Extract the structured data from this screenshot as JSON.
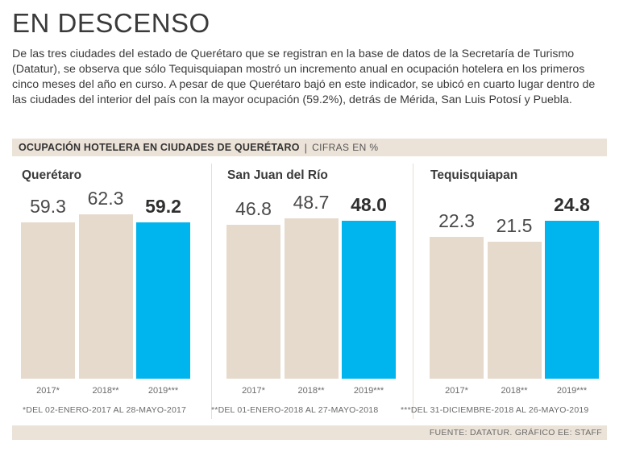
{
  "header": {
    "title": "EN DESCENSO",
    "intro": "De las tres ciudades del estado de Querétaro que se registran en la base de datos de la Secretaría de Turismo (Datatur), se observa que sólo Tequisquiapan mostró un incremento anual en ocupación hotelera en los primeros cinco meses del año en curso. A pesar de que Querétaro bajó en este indicador, se ubicó en cuarto lugar dentro de las ciudades del interior del país con la mayor ocupación (59.2%), detrás de Mérida, San Luis Potosí y Puebla."
  },
  "banner": {
    "title": "OCUPACIÓN HOTELERA EN CIUDADES DE QUERÉTARO",
    "separator": "|",
    "units": "CIFRAS EN %"
  },
  "notes": [
    "*DEL 02-ENERO-2017 AL 28-MAYO-2017",
    "**DEL 01-ENERO-2018 AL 27-MAYO-2018",
    "***DEL 31-DICIEMBRE-2018 AL 26-MAYO-2019"
  ],
  "footer": {
    "source": "FUENTE: DATATUR. GRÁFICO EE: STAFF"
  },
  "colors": {
    "base_bar": "#e6dacd",
    "highlight_bar": "#00b4ee",
    "banner_bg": "#ece3d8"
  },
  "chart_data": [
    {
      "type": "bar",
      "title": "Querétaro",
      "categories": [
        "2017*",
        "2018**",
        "2019***"
      ],
      "values": [
        59.3,
        62.3,
        59.2
      ],
      "value_labels": [
        "59.3",
        "62.3",
        "59.2"
      ],
      "highlight_index": 2,
      "ylim": [
        0,
        70
      ]
    },
    {
      "type": "bar",
      "title": "San Juan del Río",
      "categories": [
        "2017*",
        "2018**",
        "2019***"
      ],
      "values": [
        46.8,
        48.7,
        48.0
      ],
      "value_labels": [
        "46.8",
        "48.7",
        "48.0"
      ],
      "highlight_index": 2,
      "ylim": [
        0,
        56
      ]
    },
    {
      "type": "bar",
      "title": "Tequisquiapan",
      "categories": [
        "2017*",
        "2018**",
        "2019***"
      ],
      "values": [
        22.3,
        21.5,
        24.8
      ],
      "value_labels": [
        "22.3",
        "21.5",
        "24.8"
      ],
      "highlight_index": 2,
      "ylim": [
        0,
        29
      ]
    }
  ]
}
